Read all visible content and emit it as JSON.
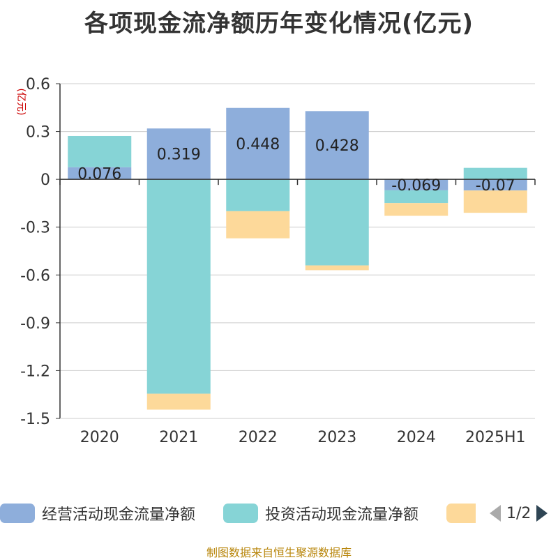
{
  "title": "各项现金流净额历年变化情况(亿元)",
  "source": "制图数据来自恒生聚源数据库",
  "pager": {
    "text": "1/2"
  },
  "chart_data": {
    "type": "bar",
    "stacked": true,
    "unit_label": "(亿元)",
    "categories": [
      "2020",
      "2021",
      "2022",
      "2023",
      "2024",
      "2025H1"
    ],
    "ylim": [
      -1.5,
      0.6
    ],
    "yticks": [
      0.6,
      0.3,
      0,
      -0.3,
      -0.6,
      -0.9,
      -1.2,
      -1.5
    ],
    "ytick_labels": [
      "0.6",
      "0.3",
      "0",
      "-0.3",
      "-0.6",
      "-0.9",
      "-1.2",
      "-1.5"
    ],
    "grid": true,
    "legend_position": "bottom",
    "series": [
      {
        "name": "经营活动现金流量净额",
        "color": "#8eaedb",
        "values": [
          0.076,
          0.319,
          0.448,
          0.428,
          -0.069,
          -0.07
        ],
        "labels": [
          "0.076",
          "0.319",
          "0.448",
          "0.428",
          "-0.069",
          "-0.07"
        ]
      },
      {
        "name": "投资活动现金流量净额",
        "color": "#86d4d6",
        "values": [
          0.196,
          -1.345,
          -0.2,
          -0.54,
          -0.08,
          0.072
        ]
      },
      {
        "name": "",
        "color": "#fdd99a",
        "values": [
          0,
          -0.1,
          -0.17,
          -0.03,
          -0.08,
          -0.14
        ]
      }
    ]
  }
}
